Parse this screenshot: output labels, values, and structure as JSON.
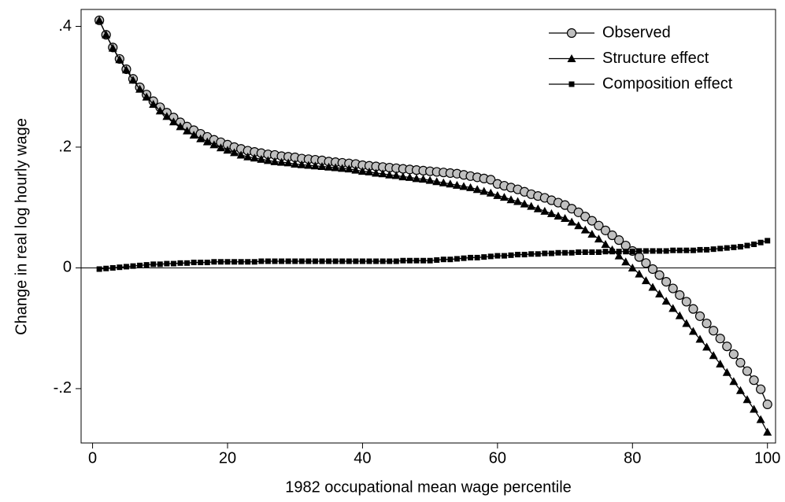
{
  "chart_data": {
    "type": "line",
    "xlabel": "1982 occupational mean wage percentile",
    "ylabel": "Change in real log hourly wage",
    "x": [
      1,
      2,
      3,
      4,
      5,
      6,
      7,
      8,
      9,
      10,
      11,
      12,
      13,
      14,
      15,
      16,
      17,
      18,
      19,
      20,
      21,
      22,
      23,
      24,
      25,
      26,
      27,
      28,
      29,
      30,
      31,
      32,
      33,
      34,
      35,
      36,
      37,
      38,
      39,
      40,
      41,
      42,
      43,
      44,
      45,
      46,
      47,
      48,
      49,
      50,
      51,
      52,
      53,
      54,
      55,
      56,
      57,
      58,
      59,
      60,
      61,
      62,
      63,
      64,
      65,
      66,
      67,
      68,
      69,
      70,
      71,
      72,
      73,
      74,
      75,
      76,
      77,
      78,
      79,
      80,
      81,
      82,
      83,
      84,
      85,
      86,
      87,
      88,
      89,
      90,
      91,
      92,
      93,
      94,
      95,
      96,
      97,
      98,
      99,
      100
    ],
    "series": [
      {
        "name": "Observed",
        "marker": "circle",
        "color": "#c0c0c0",
        "values": [
          0.41,
          0.386,
          0.365,
          0.346,
          0.329,
          0.313,
          0.299,
          0.287,
          0.276,
          0.266,
          0.257,
          0.249,
          0.241,
          0.234,
          0.228,
          0.222,
          0.217,
          0.212,
          0.208,
          0.204,
          0.2,
          0.197,
          0.194,
          0.192,
          0.19,
          0.188,
          0.187,
          0.185,
          0.184,
          0.183,
          0.181,
          0.18,
          0.179,
          0.178,
          0.176,
          0.175,
          0.174,
          0.173,
          0.172,
          0.17,
          0.169,
          0.168,
          0.167,
          0.166,
          0.165,
          0.164,
          0.163,
          0.162,
          0.161,
          0.16,
          0.159,
          0.158,
          0.157,
          0.156,
          0.154,
          0.152,
          0.15,
          0.148,
          0.146,
          0.139,
          0.136,
          0.133,
          0.13,
          0.126,
          0.122,
          0.119,
          0.116,
          0.112,
          0.108,
          0.104,
          0.098,
          0.092,
          0.085,
          0.078,
          0.07,
          0.062,
          0.054,
          0.046,
          0.037,
          0.028,
          0.018,
          0.008,
          -0.002,
          -0.012,
          -0.023,
          -0.034,
          -0.045,
          -0.056,
          -0.068,
          -0.08,
          -0.092,
          -0.104,
          -0.117,
          -0.13,
          -0.143,
          -0.157,
          -0.171,
          -0.186,
          -0.201,
          -0.226
        ]
      },
      {
        "name": "Structure effect",
        "marker": "triangle",
        "color": "#000000",
        "values": [
          0.41,
          0.386,
          0.364,
          0.345,
          0.328,
          0.311,
          0.296,
          0.283,
          0.271,
          0.26,
          0.251,
          0.242,
          0.234,
          0.227,
          0.22,
          0.214,
          0.209,
          0.204,
          0.199,
          0.195,
          0.191,
          0.187,
          0.184,
          0.182,
          0.18,
          0.178,
          0.176,
          0.175,
          0.174,
          0.172,
          0.171,
          0.17,
          0.169,
          0.168,
          0.167,
          0.166,
          0.165,
          0.164,
          0.162,
          0.16,
          0.159,
          0.157,
          0.156,
          0.154,
          0.153,
          0.151,
          0.15,
          0.148,
          0.147,
          0.145,
          0.143,
          0.141,
          0.139,
          0.137,
          0.135,
          0.133,
          0.13,
          0.127,
          0.124,
          0.12,
          0.117,
          0.113,
          0.11,
          0.106,
          0.102,
          0.098,
          0.094,
          0.09,
          0.086,
          0.082,
          0.076,
          0.07,
          0.063,
          0.056,
          0.048,
          0.039,
          0.03,
          0.02,
          0.01,
          0.0,
          -0.01,
          -0.021,
          -0.032,
          -0.043,
          -0.055,
          -0.067,
          -0.079,
          -0.092,
          -0.105,
          -0.118,
          -0.131,
          -0.145,
          -0.159,
          -0.173,
          -0.188,
          -0.203,
          -0.218,
          -0.234,
          -0.251,
          -0.272
        ]
      },
      {
        "name": "Composition effect",
        "marker": "square",
        "color": "#000000",
        "values": [
          -0.002,
          -0.001,
          0.0,
          0.001,
          0.002,
          0.003,
          0.004,
          0.005,
          0.006,
          0.006,
          0.007,
          0.007,
          0.008,
          0.008,
          0.009,
          0.009,
          0.009,
          0.01,
          0.01,
          0.01,
          0.01,
          0.01,
          0.01,
          0.01,
          0.011,
          0.011,
          0.011,
          0.011,
          0.011,
          0.011,
          0.011,
          0.011,
          0.011,
          0.011,
          0.011,
          0.011,
          0.011,
          0.011,
          0.011,
          0.011,
          0.011,
          0.011,
          0.011,
          0.011,
          0.011,
          0.012,
          0.012,
          0.012,
          0.012,
          0.012,
          0.013,
          0.014,
          0.014,
          0.015,
          0.016,
          0.017,
          0.017,
          0.018,
          0.019,
          0.02,
          0.02,
          0.021,
          0.022,
          0.022,
          0.023,
          0.023,
          0.024,
          0.024,
          0.025,
          0.025,
          0.025,
          0.026,
          0.026,
          0.026,
          0.026,
          0.027,
          0.027,
          0.027,
          0.027,
          0.027,
          0.028,
          0.028,
          0.028,
          0.028,
          0.028,
          0.029,
          0.029,
          0.029,
          0.029,
          0.03,
          0.03,
          0.031,
          0.032,
          0.033,
          0.034,
          0.035,
          0.037,
          0.039,
          0.042,
          0.045
        ]
      }
    ],
    "xlim": [
      -1.7,
      101.2
    ],
    "ylim": [
      -0.29,
      0.428
    ],
    "xticks": [
      0,
      20,
      40,
      60,
      80,
      100
    ],
    "yticks": [
      {
        "value": -0.2,
        "label": "-.2"
      },
      0,
      {
        "value": 0.2,
        "label": ".2"
      },
      {
        "value": 0.4,
        "label": ".4"
      }
    ],
    "hline": 0,
    "legend": "top-right"
  }
}
